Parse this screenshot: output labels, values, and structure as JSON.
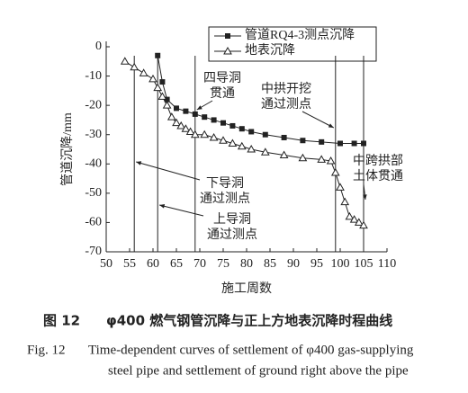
{
  "chart_data": {
    "type": "line",
    "y_label": "管道沉降/mm",
    "x_label": "施工周数",
    "xlim": [
      50,
      110
    ],
    "xticks": [
      50,
      55,
      60,
      65,
      70,
      75,
      80,
      85,
      90,
      95,
      100,
      105,
      110
    ],
    "ylim": [
      -70,
      0
    ],
    "yticks": [
      -70,
      -60,
      -50,
      -40,
      -30,
      -20,
      -10,
      0
    ],
    "event_lines": [
      56,
      61,
      69,
      99,
      105
    ],
    "annotations": [
      {
        "lines": [
          "四导洞",
          "贯通"
        ]
      },
      {
        "lines": [
          "中拱开挖",
          "通过测点"
        ]
      },
      {
        "lines": [
          "下导洞",
          "通过测点"
        ]
      },
      {
        "lines": [
          "上导洞",
          "通过测点"
        ]
      },
      {
        "lines": [
          "中跨拱部",
          "土体贯通"
        ]
      }
    ],
    "series": [
      {
        "name": "管道RQ4-3测点沉降",
        "color": "#222222",
        "marker": "square",
        "x": [
          61,
          62,
          63,
          65,
          67,
          69,
          71,
          73,
          75,
          77,
          79,
          81,
          84,
          88,
          92,
          96,
          100,
          103,
          105
        ],
        "values": [
          -3,
          -12,
          -18,
          -21,
          -22,
          -23,
          -24,
          -25,
          -26,
          -27,
          -28,
          -29,
          -30,
          -31,
          -32,
          -32.5,
          -33,
          -33,
          -33
        ]
      },
      {
        "name": "地表沉降",
        "color": "#222222",
        "marker": "triangle",
        "x": [
          54,
          56,
          58,
          60,
          61,
          62,
          63,
          64,
          65,
          66,
          67,
          68,
          69,
          71,
          73,
          75,
          77,
          79,
          81,
          84,
          88,
          92,
          96,
          98,
          99,
          100,
          101,
          102,
          103,
          104,
          105
        ],
        "values": [
          -5,
          -7,
          -9,
          -11,
          -14,
          -17,
          -20,
          -24,
          -26,
          -27,
          -28,
          -29,
          -30,
          -30,
          -31,
          -32,
          -33,
          -34,
          -35,
          -36,
          -37,
          -38,
          -38.5,
          -39,
          -43,
          -48,
          -53,
          -58,
          -59,
          -60,
          -61
        ]
      }
    ]
  },
  "caption": {
    "cn_label": "图 12",
    "cn_text": "φ400 燃气钢管沉降与正上方地表沉降时程曲线",
    "en_label": "Fig. 12",
    "en_lines": [
      "Time-dependent curves of settlement of φ400 gas-supplying",
      "steel pipe and settlement of ground right above the pipe"
    ]
  }
}
